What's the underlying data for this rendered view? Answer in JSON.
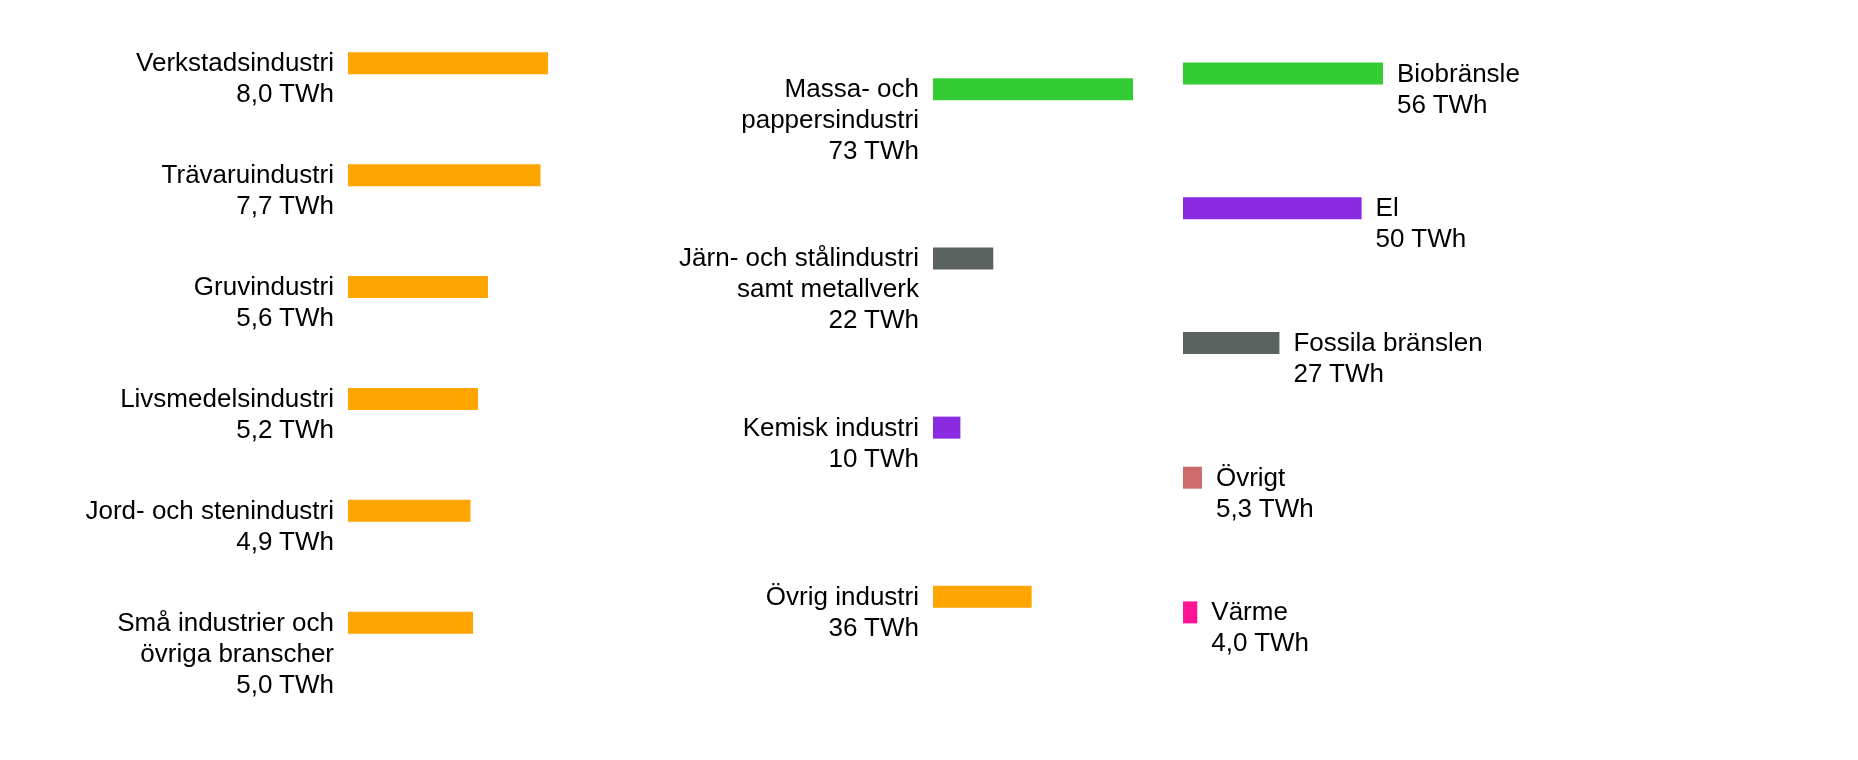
{
  "chart_data": [
    {
      "type": "other",
      "categories": [
        "Verkstadsindustri",
        "Trävaruindustri",
        "Gruvindustri",
        "Livsmedelsindustri",
        "Jord- och stenindustri",
        "Små industrier och\növriga branscher"
      ],
      "values": [
        8.0,
        7.7,
        5.6,
        5.2,
        4.9,
        5.0
      ],
      "value_labels": [
        "8,0 TWh",
        "7,7 TWh",
        "5,6 TWh",
        "5,2 TWh",
        "4,9 TWh",
        "5,0 TWh"
      ],
      "colors": [
        "#ffa500",
        "#ffa500",
        "#ffa500",
        "#ffa500",
        "#ffa500",
        "#ffa500"
      ]
    },
    {
      "type": "other",
      "categories": [
        "Massa- och\npappersindustri",
        "Järn- och stålindustri\nsamt metallverk",
        "Kemisk industri",
        "Övrig industri"
      ],
      "values": [
        73,
        22,
        10,
        36
      ],
      "value_labels": [
        "73 TWh",
        "22 TWh",
        "10 TWh",
        "36 TWh"
      ],
      "colors": [
        "#33cc33",
        "#5a635f",
        "#8a2be2",
        "#ffa500"
      ]
    },
    {
      "type": "other",
      "categories": [
        "Biobränsle",
        "El",
        "Fossila bränslen",
        "Övrigt",
        "Värme"
      ],
      "values": [
        56,
        50,
        27,
        5.3,
        4.0
      ],
      "value_labels": [
        "56 TWh",
        "50 TWh",
        "27 TWh",
        "5,3 TWh",
        "4,0 TWh"
      ],
      "colors": [
        "#33cc33",
        "#8a2be2",
        "#5a635f",
        "#cd6a6a",
        "#ff1493"
      ]
    }
  ]
}
